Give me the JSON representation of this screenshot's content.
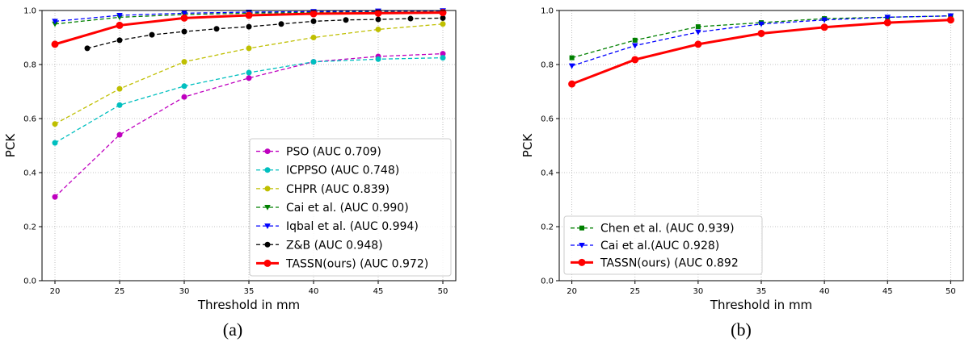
{
  "chart_data": [
    {
      "type": "line",
      "caption": "(a)",
      "xlabel": "Threshold in mm",
      "ylabel": "PCK",
      "xlim": [
        19,
        51
      ],
      "ylim": [
        0,
        1.0
      ],
      "xticks": [
        "20",
        "25",
        "30",
        "35",
        "40",
        "45",
        "50"
      ],
      "yticks": [
        "0.0",
        "0.2",
        "0.4",
        "0.6",
        "0.8",
        "1.0"
      ],
      "grid": true,
      "legend_position": "lower-right",
      "series": [
        {
          "name": "PSO (AUC 0.709)",
          "color": "#bf00bf",
          "dash": "dashed",
          "marker": "circle",
          "x": [
            20,
            25,
            30,
            35,
            40,
            45,
            50
          ],
          "y": [
            0.31,
            0.54,
            0.68,
            0.75,
            0.81,
            0.83,
            0.84
          ]
        },
        {
          "name": "ICPPSO (AUC 0.748)",
          "color": "#00bfbf",
          "dash": "dashed",
          "marker": "circle",
          "x": [
            20,
            25,
            30,
            35,
            40,
            45,
            50
          ],
          "y": [
            0.51,
            0.65,
            0.72,
            0.77,
            0.81,
            0.82,
            0.825
          ]
        },
        {
          "name": "CHPR (AUC 0.839)",
          "color": "#bfbf00",
          "dash": "dashed",
          "marker": "circle",
          "x": [
            20,
            25,
            30,
            35,
            40,
            45,
            50
          ],
          "y": [
            0.58,
            0.71,
            0.81,
            0.86,
            0.9,
            0.93,
            0.95
          ]
        },
        {
          "name": "Cai et al. (AUC 0.990)",
          "color": "#008000",
          "dash": "dashed",
          "marker": "triangle-down",
          "x": [
            20,
            25,
            30,
            35,
            40,
            45,
            50
          ],
          "y": [
            0.95,
            0.975,
            0.985,
            0.99,
            0.993,
            0.996,
            0.998
          ]
        },
        {
          "name": "Iqbal et al. (AUC 0.994)",
          "color": "#0000ff",
          "dash": "dashed",
          "marker": "triangle-down",
          "x": [
            20,
            25,
            30,
            35,
            40,
            45,
            50
          ],
          "y": [
            0.96,
            0.982,
            0.99,
            0.994,
            0.996,
            0.998,
            0.999
          ]
        },
        {
          "name": "Z&B (AUC 0.948)",
          "color": "#000000",
          "dash": "dashed",
          "marker": "circle",
          "x": [
            22.5,
            25,
            27.5,
            30,
            32.5,
            35,
            37.5,
            40,
            42.5,
            45,
            47.5,
            50
          ],
          "y": [
            0.86,
            0.89,
            0.91,
            0.922,
            0.932,
            0.94,
            0.95,
            0.96,
            0.965,
            0.967,
            0.97,
            0.972
          ]
        },
        {
          "name": "TASSN(ours) (AUC 0.972)",
          "color": "#ff0000",
          "dash": "solid",
          "marker": "circle",
          "bold": true,
          "x": [
            20,
            25,
            30,
            35,
            40,
            45,
            50
          ],
          "y": [
            0.875,
            0.945,
            0.972,
            0.982,
            0.988,
            0.99,
            0.992
          ]
        }
      ]
    },
    {
      "type": "line",
      "caption": "(b)",
      "xlabel": "Threshold in mm",
      "ylabel": "PCK",
      "xlim": [
        19,
        51
      ],
      "ylim": [
        0,
        1.0
      ],
      "xticks": [
        "20",
        "25",
        "30",
        "35",
        "40",
        "45",
        "50"
      ],
      "yticks": [
        "0.0",
        "0.2",
        "0.4",
        "0.6",
        "0.8",
        "1.0"
      ],
      "grid": true,
      "legend_position": "lower-left",
      "series": [
        {
          "name": "Chen et al. (AUC 0.939)",
          "color": "#008000",
          "dash": "dashed",
          "marker": "square",
          "x": [
            20,
            25,
            30,
            35,
            40,
            45,
            50
          ],
          "y": [
            0.825,
            0.89,
            0.94,
            0.955,
            0.97,
            0.975,
            0.98
          ]
        },
        {
          "name": "Cai et al.(AUC 0.928)",
          "color": "#0000ff",
          "dash": "dashed",
          "marker": "triangle-down",
          "x": [
            20,
            25,
            30,
            35,
            40,
            45,
            50
          ],
          "y": [
            0.795,
            0.87,
            0.92,
            0.95,
            0.965,
            0.975,
            0.98
          ]
        },
        {
          "name": "TASSN(ours) (AUC 0.892",
          "color": "#ff0000",
          "dash": "solid",
          "marker": "circle",
          "bold": true,
          "x": [
            20,
            25,
            30,
            35,
            40,
            45,
            50
          ],
          "y": [
            0.728,
            0.818,
            0.875,
            0.915,
            0.938,
            0.955,
            0.965
          ]
        }
      ]
    }
  ]
}
